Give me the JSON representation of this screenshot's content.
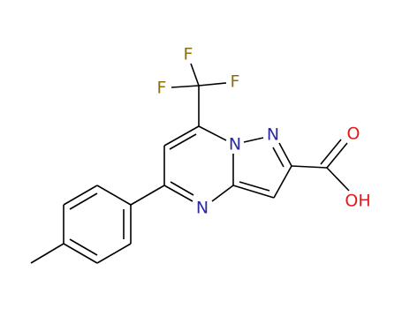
{
  "atoms": [
    {
      "label": "F"
    },
    {
      "label": "F"
    },
    {
      "label": "F"
    },
    {
      "label": "N"
    },
    {
      "label": "N"
    },
    {
      "label": "N"
    },
    {
      "label": "O"
    },
    {
      "label": "OH"
    }
  ]
}
